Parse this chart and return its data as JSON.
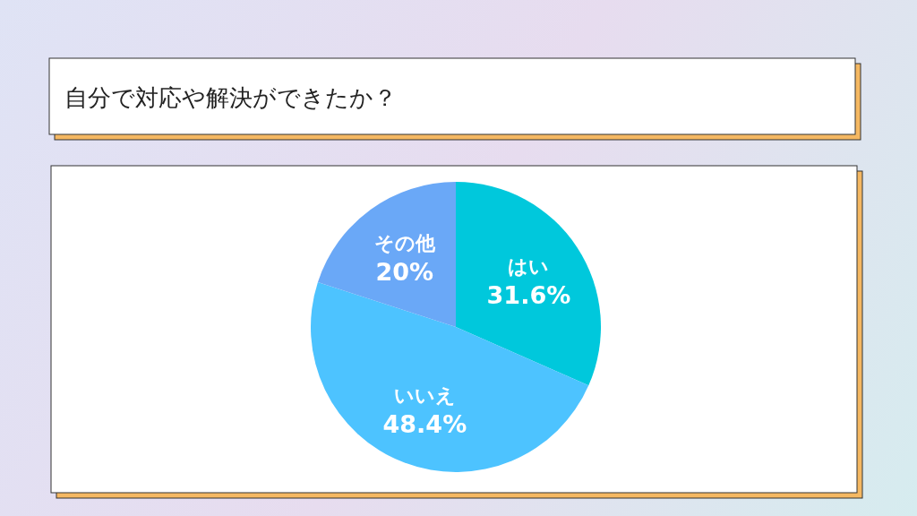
{
  "chart_data": {
    "type": "pie",
    "title": "自分で対応や解決ができたか？",
    "categories": [
      "はい",
      "いいえ",
      "その他"
    ],
    "values": [
      31.6,
      48.4,
      20
    ],
    "colors": [
      "#00c8dc",
      "#4dc3ff",
      "#6aa8f7"
    ],
    "value_labels": [
      "31.6%",
      "48.4%",
      "20%"
    ]
  }
}
